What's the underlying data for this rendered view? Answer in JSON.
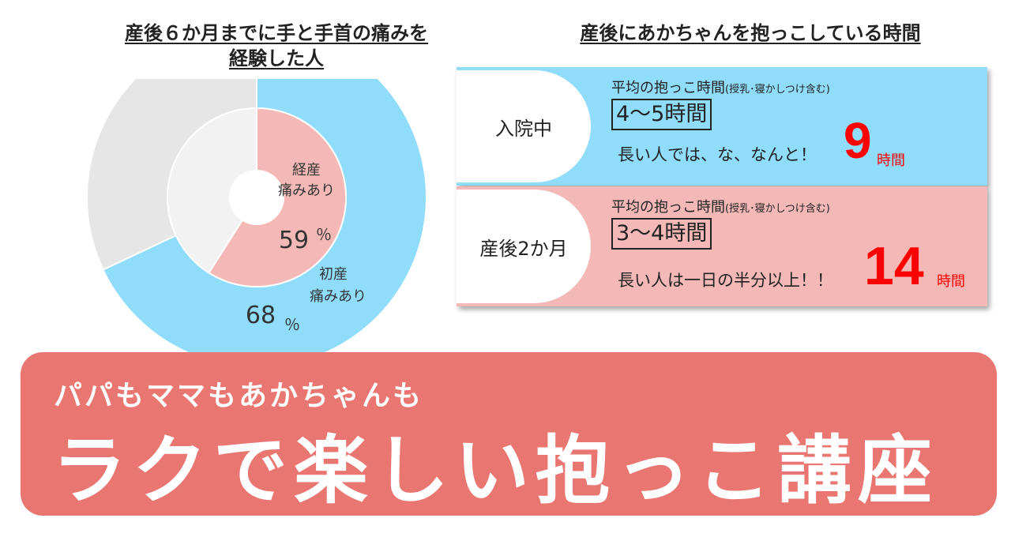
{
  "chart_data": {
    "type": "pie",
    "title": "産後６か月までに手と手首の痛みを経験した人",
    "series": [
      {
        "label": "初産痛みあり",
        "value": 68,
        "unit": "％",
        "color": "#8fdcfb",
        "rest_color": "#e6e6e6"
      },
      {
        "label": "経産痛みあり",
        "value": 59,
        "unit": "％",
        "color": "#f4b9b6",
        "rest_color": "#f2f2f2"
      }
    ]
  },
  "donut": {
    "inner_label_line1": "経産",
    "inner_label_line2": "痛みあり",
    "inner_value": "59",
    "inner_unit": "％",
    "outer_label_line1": "初産",
    "outer_label_line2": "痛みあり",
    "outer_value": "68",
    "outer_unit": "％"
  },
  "right_title": "産後にあかちゃんを抱っこしている時間",
  "cards": [
    {
      "tab": "入院中",
      "avg_label": "平均の抱っこ時間",
      "avg_note": "(授乳･寝かしつけ含む)",
      "range": "4～5時間",
      "note": "長い人では、な、なんと！",
      "max": "9",
      "unit": "時間"
    },
    {
      "tab": "産後2か月",
      "avg_label": "平均の抱っこ時間",
      "avg_note": "(授乳･寝かしつけ含む)",
      "range": "3～4時間",
      "note": "長い人は一日の半分以上！！",
      "max": "14",
      "unit": "時間"
    }
  ],
  "banner": {
    "sub": "パパもママもあかちゃんも",
    "main": "ラクで楽しい抱っこ講座"
  }
}
